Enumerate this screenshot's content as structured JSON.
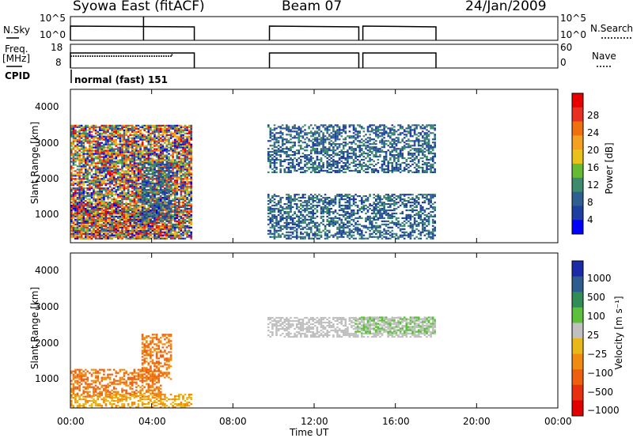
{
  "header": {
    "title": "Syowa East (fitACF)",
    "beam": "Beam 07",
    "date": "24/Jan/2009"
  },
  "panels": {
    "nsky_label": "N.Sky",
    "nsky_ticks": [
      "10^5",
      "10^0"
    ],
    "nsearch_label": "N.Search",
    "nsearch_ticks": [
      "10^5",
      "10^0"
    ],
    "freq_label": "Freq.",
    "freq_unit": "[MHz]",
    "freq_ticks": [
      "18",
      "8"
    ],
    "nave_label": "Nave",
    "nave_ticks": [
      "60",
      "0"
    ],
    "cpid_label": "CPID",
    "cpid_value": "normal (fast) 151"
  },
  "colors": {
    "power_scale": [
      "#0000ff",
      "#1f3fa0",
      "#2e5f8f",
      "#3c8b6c",
      "#66bb33",
      "#e8c21a",
      "#f4a020",
      "#f07010",
      "#e83020",
      "#e80000"
    ],
    "velocity_scale": [
      "#1b2aa8",
      "#2e5c8f",
      "#2f8d55",
      "#5cc03a",
      "#c0c0c0",
      "#e8b81a",
      "#f08a10",
      "#ee6010",
      "#e83010",
      "#e00000"
    ]
  },
  "chart_data": [
    {
      "type": "heatmap",
      "name": "power",
      "ylabel": "Slant Range [km]",
      "yticks": [
        "1000",
        "2000",
        "3000",
        "4000"
      ],
      "ylim": [
        200,
        4600
      ],
      "xlim": [
        0,
        24
      ],
      "colorbar": {
        "label": "Power [dB]",
        "ticks": [
          "28",
          "24",
          "20",
          "16",
          "12",
          "8",
          "4"
        ],
        "range": [
          0,
          32
        ]
      },
      "regions": [
        {
          "t": [
            0.0,
            5.0
          ],
          "r": [
            300,
            1300
          ],
          "level": "high"
        },
        {
          "t": [
            0.0,
            6.0
          ],
          "r": [
            300,
            3600
          ],
          "level": "mixed"
        },
        {
          "t": [
            3.5,
            5.0
          ],
          "r": [
            800,
            2500
          ],
          "level": "low"
        },
        {
          "t": [
            9.7,
            18.0
          ],
          "r": [
            2200,
            3600
          ],
          "level": "low"
        },
        {
          "t": [
            9.7,
            18.0
          ],
          "r": [
            300,
            1600
          ],
          "level": "low"
        }
      ]
    },
    {
      "type": "heatmap",
      "name": "velocity",
      "ylabel": "Slant Range [km]",
      "yticks": [
        "1000",
        "2000",
        "3000",
        "4000"
      ],
      "ylim": [
        200,
        4600
      ],
      "xlim": [
        0,
        24
      ],
      "xticks": [
        "00:00",
        "04:00",
        "08:00",
        "12:00",
        "16:00",
        "20:00",
        "00:00"
      ],
      "xlabel": "Time UT",
      "colorbar": {
        "label": "Velocity [m s⁻¹]",
        "ticks": [
          "1000",
          "500",
          "100",
          "25",
          "−25",
          "−100",
          "−500",
          "−1000"
        ]
      },
      "regions": [
        {
          "t": [
            0.0,
            4.5
          ],
          "r": [
            500,
            1300
          ],
          "level": "-500"
        },
        {
          "t": [
            3.5,
            5.0
          ],
          "r": [
            1000,
            2300
          ],
          "level": "-500"
        },
        {
          "t": [
            0.0,
            6.0
          ],
          "r": [
            200,
            600
          ],
          "level": "-100"
        },
        {
          "t": [
            9.7,
            18.0
          ],
          "r": [
            2200,
            2800
          ],
          "level": "25"
        },
        {
          "t": [
            14.0,
            18.0
          ],
          "r": [
            2300,
            2800
          ],
          "level": "100"
        }
      ]
    }
  ]
}
